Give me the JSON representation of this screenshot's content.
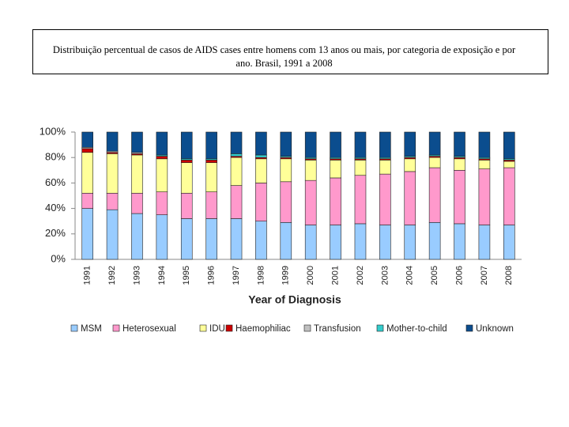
{
  "chart_data": {
    "type": "stacked_bar",
    "title": "Distribuição percentual de casos de AIDS cases entre homens com 13 anos ou mais, por categoria de exposição e por ano. Brasil, 1991 a 2008",
    "x_label": "Year of Diagnosis",
    "categories": [
      "1991",
      "1992",
      "1993",
      "1994",
      "1995",
      "1996",
      "1997",
      "1998",
      "1999",
      "2000",
      "2001",
      "2002",
      "2003",
      "2004",
      "2005",
      "2006",
      "2007",
      "2008"
    ],
    "series": [
      {
        "name": "MSM",
        "color": "#99ccff",
        "values": [
          40,
          39,
          36,
          35,
          32,
          32,
          32,
          30,
          29,
          27,
          27,
          28,
          27,
          27,
          29,
          28,
          27,
          27
        ]
      },
      {
        "name": "Heterosexual",
        "color": "#ff99cc",
        "values": [
          12,
          13,
          16,
          18,
          20,
          21,
          26,
          30,
          32,
          35,
          37,
          38,
          40,
          42,
          43,
          42,
          44,
          45
        ]
      },
      {
        "name": "IDU",
        "color": "#ffff99",
        "values": [
          32,
          31,
          30,
          26,
          24,
          23,
          22,
          19,
          18,
          16,
          14,
          12,
          11,
          10,
          8,
          9,
          7,
          5
        ]
      },
      {
        "name": "Haemophiliac",
        "color": "#cc0000",
        "values": [
          3,
          1,
          1,
          2,
          2,
          2,
          1,
          1,
          1,
          1,
          1,
          1,
          1,
          1,
          1,
          1,
          1,
          1
        ]
      },
      {
        "name": "Transfusion",
        "color": "#c0c0c0",
        "values": [
          1,
          1,
          1,
          0,
          0,
          0,
          0,
          0,
          0,
          0,
          0,
          0,
          0,
          0,
          0,
          0,
          0,
          0
        ]
      },
      {
        "name": "Mother-to-child",
        "color": "#33cccc",
        "values": [
          0,
          0,
          0,
          1,
          1,
          1,
          2,
          2,
          1,
          1,
          1,
          1,
          1,
          1,
          1,
          1,
          1,
          1
        ]
      },
      {
        "name": "Unknown",
        "color": "#0b4d8e",
        "values": [
          12,
          15,
          16,
          18,
          21,
          21,
          17,
          18,
          19,
          20,
          20,
          20,
          20,
          19,
          18,
          19,
          20,
          21
        ]
      }
    ],
    "ylim": [
      0,
      100
    ],
    "yticks": [
      {
        "value": 0,
        "label": "0%"
      },
      {
        "value": 20,
        "label": "20%"
      },
      {
        "value": 40,
        "label": "40%"
      },
      {
        "value": 60,
        "label": "60%"
      },
      {
        "value": 80,
        "label": "80%"
      },
      {
        "value": 100,
        "label": "100%"
      }
    ],
    "grid": false,
    "legend": "bottom"
  }
}
